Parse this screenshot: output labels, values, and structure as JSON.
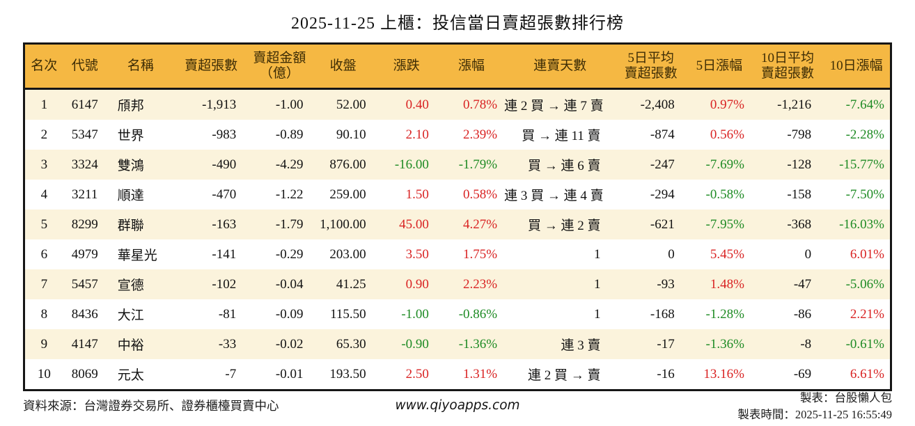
{
  "title": "2025-11-25 上櫃：投信當日賣超張數排行榜",
  "colors": {
    "header_bg": "#F5B843",
    "header_fg": "#3D2C05",
    "row_alt": "#FBF3DC",
    "up_red": "#D92323",
    "down_green": "#1E8B24"
  },
  "chart_data": {
    "type": "table",
    "columns": [
      [
        "名次"
      ],
      [
        "代號"
      ],
      [
        "名稱"
      ],
      [
        "賣超張數"
      ],
      [
        "賣超金額",
        "（億）"
      ],
      [
        "收盤"
      ],
      [
        "漲跌"
      ],
      [
        "漲幅"
      ],
      [
        "連賣天數"
      ],
      [
        "5日平均",
        "賣超張數"
      ],
      [
        "5日漲幅"
      ],
      [
        "10日平均",
        "賣超張數"
      ],
      [
        "10日漲幅"
      ]
    ],
    "align": [
      "c",
      "c",
      "l",
      "r",
      "r",
      "r",
      "r",
      "r",
      "r",
      "r",
      "r",
      "r",
      "r"
    ],
    "colored_columns": [
      6,
      7,
      10,
      12
    ],
    "rows": [
      [
        "1",
        "6147",
        "頎邦",
        "-1,913",
        "-1.00",
        "52.00",
        "0.40",
        "0.78%",
        "連 2 買 → 連 7 賣",
        "-2,408",
        "0.97%",
        "-1,216",
        "-7.64%"
      ],
      [
        "2",
        "5347",
        "世界",
        "-983",
        "-0.89",
        "90.10",
        "2.10",
        "2.39%",
        "買 → 連 11 賣",
        "-874",
        "0.56%",
        "-798",
        "-2.28%"
      ],
      [
        "3",
        "3324",
        "雙鴻",
        "-490",
        "-4.29",
        "876.00",
        "-16.00",
        "-1.79%",
        "買 → 連 6 賣",
        "-247",
        "-7.69%",
        "-128",
        "-15.77%"
      ],
      [
        "4",
        "3211",
        "順達",
        "-470",
        "-1.22",
        "259.00",
        "1.50",
        "0.58%",
        "連 3 買 → 連 4 賣",
        "-294",
        "-0.58%",
        "-158",
        "-7.50%"
      ],
      [
        "5",
        "8299",
        "群聯",
        "-163",
        "-1.79",
        "1,100.00",
        "45.00",
        "4.27%",
        "買 → 連 2 賣",
        "-621",
        "-7.95%",
        "-368",
        "-16.03%"
      ],
      [
        "6",
        "4979",
        "華星光",
        "-141",
        "-0.29",
        "203.00",
        "3.50",
        "1.75%",
        "1",
        "0",
        "5.45%",
        "0",
        "6.01%"
      ],
      [
        "7",
        "5457",
        "宣德",
        "-102",
        "-0.04",
        "41.25",
        "0.90",
        "2.23%",
        "1",
        "-93",
        "1.48%",
        "-47",
        "-5.06%"
      ],
      [
        "8",
        "8436",
        "大江",
        "-81",
        "-0.09",
        "115.50",
        "-1.00",
        "-0.86%",
        "1",
        "-168",
        "-1.28%",
        "-86",
        "2.21%"
      ],
      [
        "9",
        "4147",
        "中裕",
        "-33",
        "-0.02",
        "65.30",
        "-0.90",
        "-1.36%",
        "連 3 賣",
        "-17",
        "-1.36%",
        "-8",
        "-0.61%"
      ],
      [
        "10",
        "8069",
        "元太",
        "-7",
        "-0.01",
        "193.50",
        "2.50",
        "1.31%",
        "連 2 買 → 賣",
        "-16",
        "13.16%",
        "-69",
        "6.61%"
      ]
    ]
  },
  "footer": {
    "source": "資料來源：台灣證券交易所、證券櫃檯買賣中心",
    "website": "www.qiyoapps.com",
    "maker": "製表：台股懶人包",
    "made_time": "製表時間：2025-11-25 16:55:49"
  }
}
